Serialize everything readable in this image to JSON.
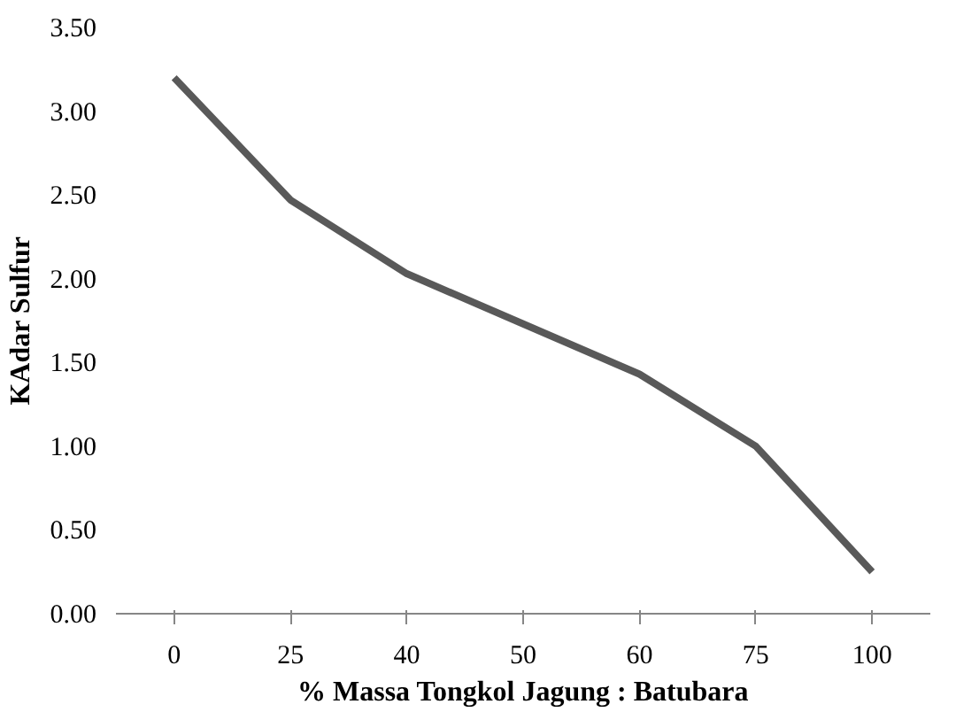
{
  "chart_data": {
    "type": "line",
    "xlabel": "% Massa Tongkol Jagung : Batubara",
    "ylabel": "KAdar Sulfur",
    "categories": [
      "0",
      "25",
      "40",
      "50",
      "60",
      "75",
      "100"
    ],
    "series": [
      {
        "color": "#595959",
        "values": [
          3.2,
          2.47,
          2.03,
          1.73,
          1.43,
          1.0,
          0.25
        ]
      }
    ],
    "ylim": [
      0,
      3.5
    ],
    "yticks": [
      {
        "value": 0,
        "label": "0.00"
      },
      {
        "value": 0.5,
        "label": "0.50"
      },
      {
        "value": 1,
        "label": "1.00"
      },
      {
        "value": 1.5,
        "label": "1.50"
      },
      {
        "value": 2,
        "label": "2.00"
      },
      {
        "value": 2.5,
        "label": "2.50"
      },
      {
        "value": 3,
        "label": "3.00"
      },
      {
        "value": 3.5,
        "label": "3.50"
      }
    ],
    "grid": false,
    "marker": "none",
    "line_style": "solid"
  }
}
